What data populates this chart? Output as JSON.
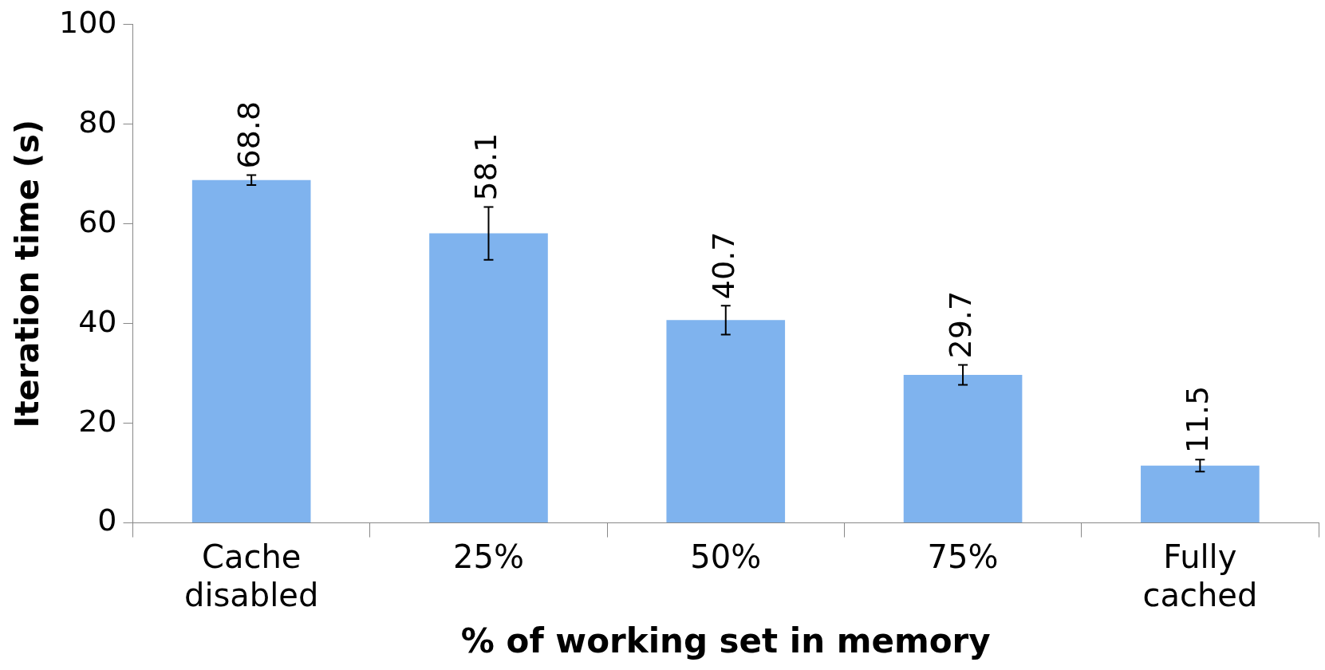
{
  "chart_data": {
    "type": "bar",
    "xlabel": "% of working set in memory",
    "ylabel": "Iteration time (s)",
    "categories": [
      "Cache\ndisabled",
      "25%",
      "50%",
      "75%",
      "Fully\ncached"
    ],
    "values": [
      68.8,
      58.1,
      40.7,
      29.7,
      11.5
    ],
    "errors": [
      1,
      5.3,
      2.9,
      2,
      1.2
    ],
    "color": "#7fb3ee",
    "ylim": [
      0,
      100
    ],
    "yticks": [
      0,
      20,
      40,
      60,
      80,
      100
    ],
    "grid": false,
    "legend": false,
    "data_labels": true
  }
}
